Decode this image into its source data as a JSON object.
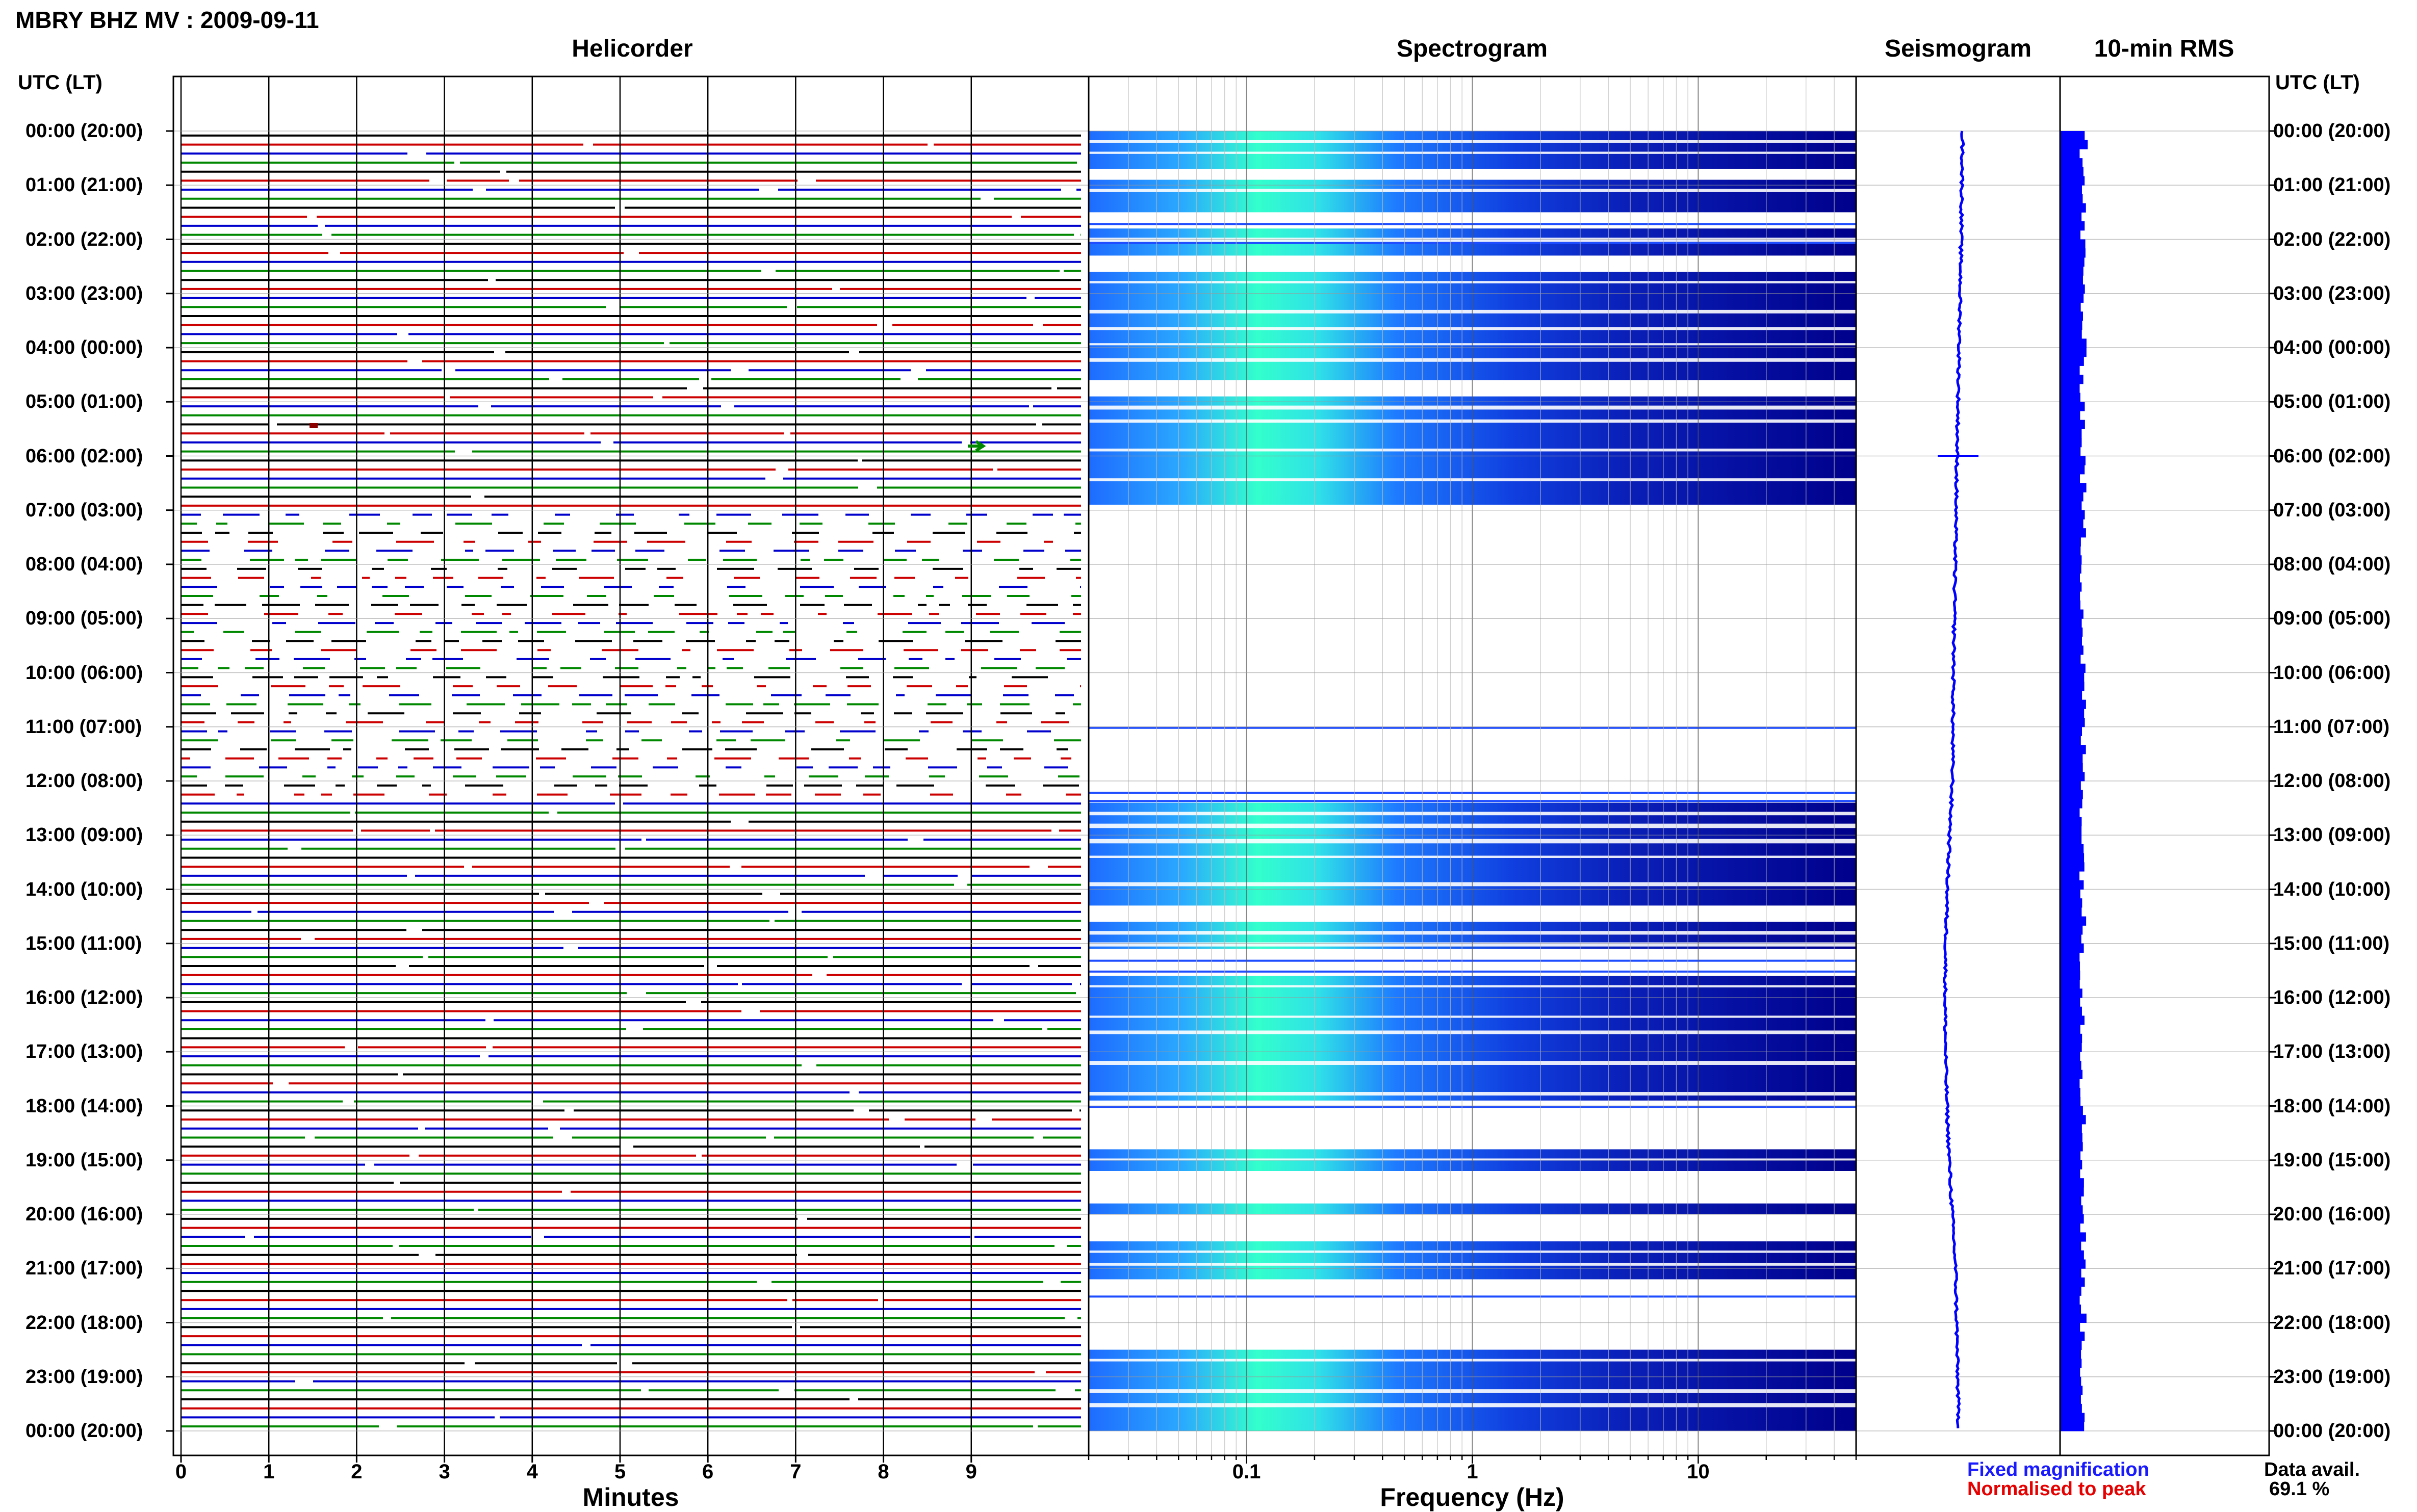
{
  "header": {
    "title": "MBRY BHZ MV : 2009-09-11"
  },
  "panels": {
    "helicorder": "Helicorder",
    "spectrogram": "Spectrogram",
    "seismogram": "Seismogram",
    "rms": "10-min RMS"
  },
  "axis": {
    "left_header": "UTC (LT)",
    "right_header": "UTC (LT)",
    "hour_labels": [
      "00:00 (20:00)",
      "01:00 (21:00)",
      "02:00 (22:00)",
      "03:00 (23:00)",
      "04:00 (00:00)",
      "05:00 (01:00)",
      "06:00 (02:00)",
      "07:00 (03:00)",
      "08:00 (04:00)",
      "09:00 (05:00)",
      "10:00 (06:00)",
      "11:00 (07:00)",
      "12:00 (08:00)",
      "13:00 (09:00)",
      "14:00 (10:00)",
      "15:00 (11:00)",
      "16:00 (12:00)",
      "17:00 (13:00)",
      "18:00 (14:00)",
      "19:00 (15:00)",
      "20:00 (16:00)",
      "21:00 (17:00)",
      "22:00 (18:00)",
      "23:00 (19:00)",
      "00:00 (20:00)"
    ]
  },
  "legend": {
    "fixed": "Fixed magnification",
    "normalised": "Normalised to peak"
  },
  "availability": {
    "label": "Data avail.",
    "value": "69.1 %"
  },
  "colors": {
    "trace_cycle": [
      "#000000",
      "#cc0000",
      "#0000cc",
      "#008800"
    ],
    "spectro_dark": "#00008b",
    "spectro_mid": "#1e4dff",
    "spectro_hot": "#33ffcc",
    "seismo": "#0000ff",
    "rms": "#0000ff"
  },
  "chart_data": [
    {
      "type": "line",
      "title": "Helicorder",
      "xlabel": "Minutes",
      "x_ticks": [
        "0",
        "1",
        "2",
        "3",
        "4",
        "5",
        "6",
        "7",
        "8",
        "9"
      ],
      "xlim": [
        0,
        10
      ],
      "rows_per_hour": 6,
      "y_ticks": "axis.hour_labels",
      "data_gap_hours": [
        [
          7.0,
          12.2
        ]
      ]
    },
    {
      "type": "heatmap",
      "title": "Spectrogram",
      "xlabel": "Frequency (Hz)",
      "x_scale": "log",
      "x_ticks": [
        "0.1",
        "1",
        "10"
      ],
      "xlim": [
        0.02,
        50
      ],
      "active_hour_bands": [
        [
          0.0,
          0.7
        ],
        [
          0.9,
          1.5
        ],
        [
          1.8,
          2.3
        ],
        [
          2.6,
          4.6
        ],
        [
          4.9,
          6.9
        ],
        [
          12.4,
          14.3
        ],
        [
          14.6,
          15.1
        ],
        [
          15.6,
          17.9
        ],
        [
          18.8,
          19.2
        ],
        [
          19.8,
          20.0
        ],
        [
          20.5,
          21.2
        ],
        [
          22.5,
          24.0
        ]
      ]
    },
    {
      "type": "line",
      "title": "Seismogram",
      "description_series": "fixed-magnification long-period trace",
      "y_ticks": "axis.hour_labels"
    },
    {
      "type": "bar",
      "title": "10-min RMS",
      "orientation": "horizontal",
      "y_ticks": "axis.hour_labels"
    }
  ]
}
